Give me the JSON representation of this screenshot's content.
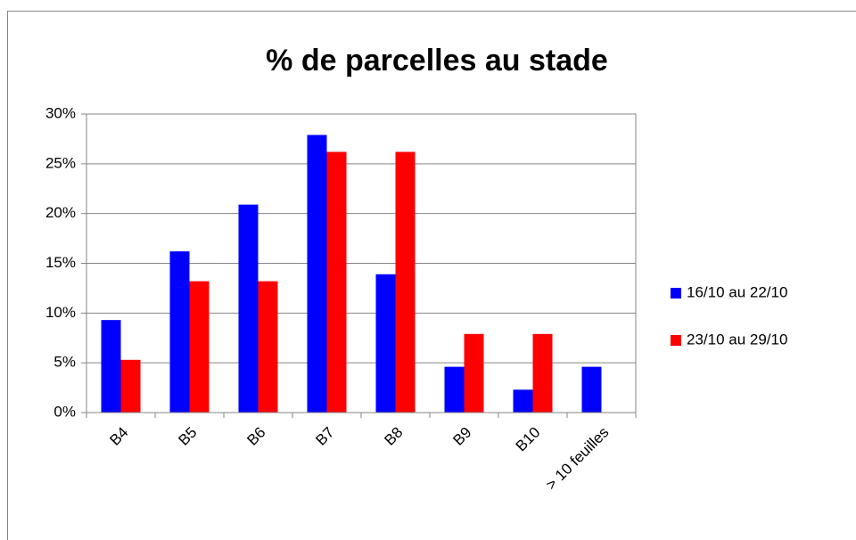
{
  "chart_data": {
    "type": "bar",
    "title": "% de parcelles au stade",
    "categories": [
      "B4",
      "B5",
      "B6",
      "B7",
      "B8",
      "B9",
      "B10",
      "> 10 feuilles"
    ],
    "series": [
      {
        "name": "16/10 au 22/10",
        "color": "#0000ff",
        "values": [
          9.3,
          16.2,
          20.9,
          27.9,
          13.9,
          4.6,
          2.3,
          4.6
        ]
      },
      {
        "name": "23/10 au 29/10",
        "color": "#ff0000",
        "values": [
          5.3,
          13.2,
          13.2,
          26.2,
          26.2,
          7.9,
          7.9,
          null
        ]
      }
    ],
    "ylim": [
      0,
      30
    ],
    "yticks": [
      {
        "value": 0,
        "label": "0%"
      },
      {
        "value": 5,
        "label": "5%"
      },
      {
        "value": 10,
        "label": "10%"
      },
      {
        "value": 15,
        "label": "15%"
      },
      {
        "value": 20,
        "label": "20%"
      },
      {
        "value": 25,
        "label": "25%"
      },
      {
        "value": 30,
        "label": "30%"
      }
    ],
    "grid": true,
    "legend": "right"
  }
}
